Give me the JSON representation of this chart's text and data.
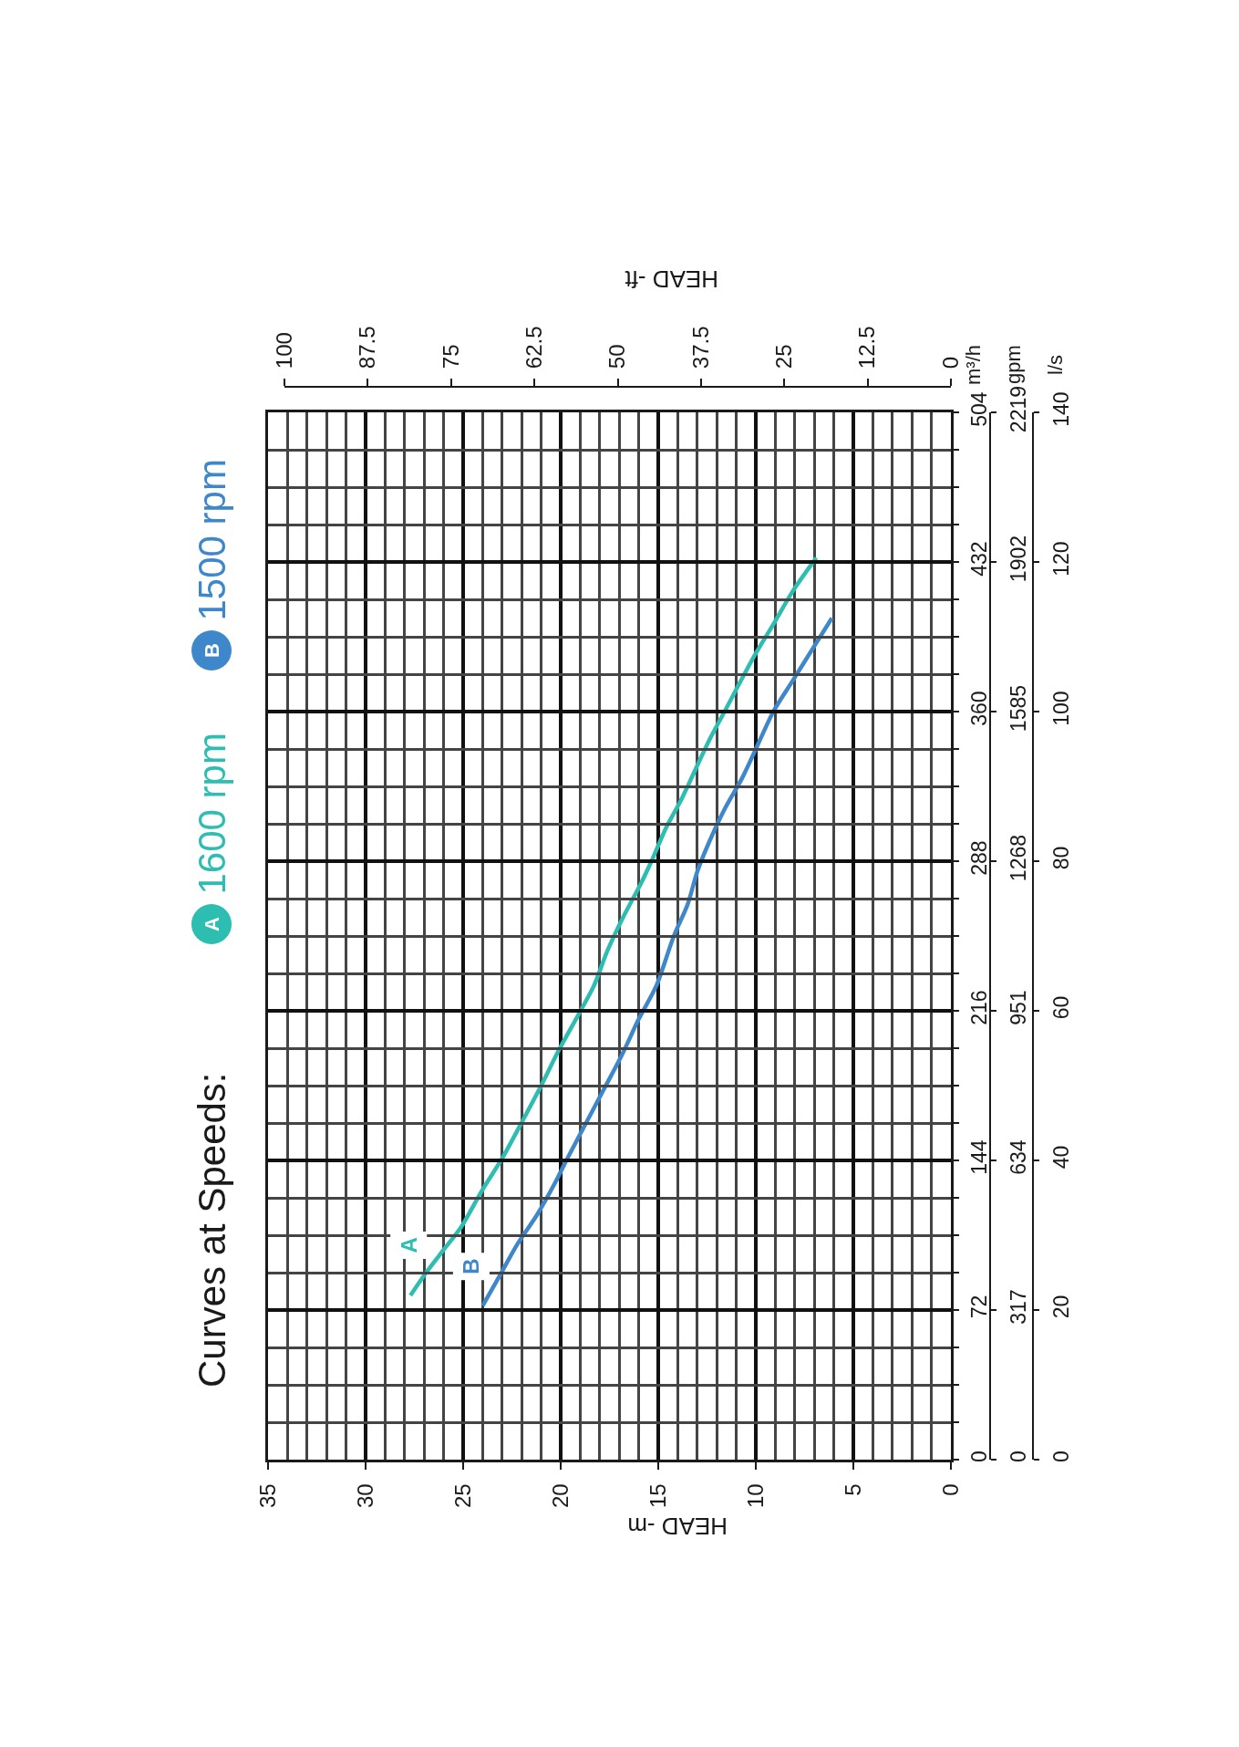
{
  "chart_data": {
    "type": "line",
    "title": "Curves at Speeds:",
    "xlabel": "HEAD -m",
    "x2label": "HEAD -ft",
    "ylabel": "m³/h",
    "y2label": "gpm",
    "y3label": "l/s",
    "xlim": [
      35,
      0
    ],
    "xticks": [
      35,
      {
        "value": 34,
        "label": null
      },
      {
        "value": 33,
        "label": null
      },
      {
        "value": 32,
        "label": null
      },
      {
        "value": 31,
        "label": null
      },
      30,
      {
        "value": 29,
        "label": null
      },
      {
        "value": 28,
        "label": null
      },
      {
        "value": 27,
        "label": null
      },
      {
        "value": 26,
        "label": null
      },
      25,
      {
        "value": 24,
        "label": null
      },
      {
        "value": 23,
        "label": null
      },
      {
        "value": 22,
        "label": null
      },
      {
        "value": 21,
        "label": null
      },
      20,
      {
        "value": 19,
        "label": null
      },
      {
        "value": 18,
        "label": null
      },
      {
        "value": 17,
        "label": null
      },
      {
        "value": 16,
        "label": null
      },
      15,
      {
        "value": 14,
        "label": null
      },
      {
        "value": 13,
        "label": null
      },
      {
        "value": 12,
        "label": null
      },
      {
        "value": 11,
        "label": null
      },
      10,
      {
        "value": 9,
        "label": null
      },
      {
        "value": 8,
        "label": null
      },
      {
        "value": 7,
        "label": null
      },
      {
        "value": 6,
        "label": null
      },
      5,
      {
        "value": 4,
        "label": null
      },
      {
        "value": 3,
        "label": null
      },
      {
        "value": 2,
        "label": null
      },
      {
        "value": 1,
        "label": null
      },
      0
    ],
    "x2lim": [
      100,
      0
    ],
    "x2ticks": [
      100,
      87.5,
      75,
      62.5,
      50,
      37.5,
      25,
      12.5,
      0
    ],
    "ylim": [
      0,
      504
    ],
    "yticks": [
      0,
      {
        "value": 18,
        "label": null
      },
      {
        "value": 36,
        "label": null
      },
      {
        "value": 54,
        "label": null
      },
      72,
      {
        "value": 90,
        "label": null
      },
      {
        "value": 108,
        "label": null
      },
      {
        "value": 126,
        "label": null
      },
      144,
      {
        "value": 162,
        "label": null
      },
      {
        "value": 180,
        "label": null
      },
      {
        "value": 198,
        "label": null
      },
      216,
      {
        "value": 234,
        "label": null
      },
      {
        "value": 252,
        "label": null
      },
      {
        "value": 270,
        "label": null
      },
      288,
      {
        "value": 306,
        "label": null
      },
      {
        "value": 324,
        "label": null
      },
      {
        "value": 342,
        "label": null
      },
      360,
      {
        "value": 378,
        "label": null
      },
      {
        "value": 396,
        "label": null
      },
      {
        "value": 414,
        "label": null
      },
      432,
      {
        "value": 450,
        "label": null
      },
      {
        "value": 468,
        "label": null
      },
      {
        "value": 486,
        "label": null
      },
      504
    ],
    "y2lim": [
      0,
      2219
    ],
    "y2ticks": [
      0,
      317,
      634,
      951,
      1268,
      1585,
      1902,
      2219
    ],
    "y3lim": [
      0,
      140
    ],
    "y3ticks": [
      0,
      20,
      40,
      60,
      80,
      100,
      120,
      140
    ],
    "grid": true,
    "legend": "left",
    "series": [
      {
        "name": "1600 rpm",
        "color": "#2dbdb1",
        "x": [
          27.7,
          26.9,
          26.0,
          25.1,
          24.0,
          23.0,
          21.9,
          21.0,
          20.1,
          19.1,
          18.3,
          17.6,
          16.8,
          15.9,
          15.3,
          14.6,
          13.8,
          13.1,
          12.4,
          11.6,
          10.7,
          10.0,
          9.1,
          8.1,
          6.9
        ],
        "values": [
          79,
          90,
          101,
          112,
          130,
          145,
          164,
          180,
          197,
          214,
          228,
          245,
          261,
          277,
          289,
          304,
          318,
          332,
          346,
          360,
          376,
          388,
          402,
          418,
          434
        ]
      },
      {
        "name": "1500 rpm",
        "color": "#3f87cb",
        "x": [
          24.0,
          23.1,
          22.2,
          21.2,
          20.3,
          19.6,
          18.7,
          17.8,
          16.9,
          16.0,
          15.1,
          14.2,
          13.5,
          13.0,
          12.4,
          11.6,
          10.7,
          9.9,
          9.1,
          8.1,
          7.1,
          6.1
        ],
        "values": [
          74,
          89,
          104,
          118,
          133,
          146,
          162,
          178,
          194,
          212,
          228,
          252,
          267,
          283,
          297,
          313,
          328,
          344,
          360,
          375,
          390,
          405
        ]
      }
    ],
    "annotations": [
      {
        "text": "A",
        "x": 27.8,
        "y": 103
      },
      {
        "text": "B",
        "x": 24.6,
        "y": 93
      }
    ]
  }
}
